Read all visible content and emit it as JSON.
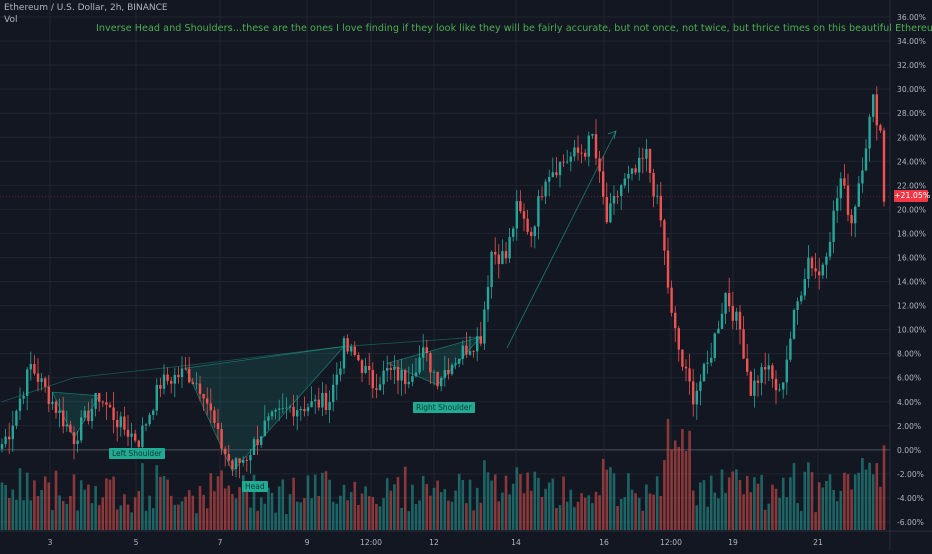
{
  "header": {
    "symbol": "Ethereum / U.S. Dollar, 2h, BINANCE",
    "indicator": "Vol"
  },
  "annotation": "Inverse Head and Shoulders…these are the ones I love finding if they look like they will be fairly accurate, but not once, not twice, but thrice times on this beautiful Ethereum chart.",
  "pattern_labels": {
    "left_shoulder": "Left Shoulder",
    "head": "Head",
    "right_shoulder": "Right Shoulder"
  },
  "colors": {
    "background": "#131722",
    "up": "#26a69a",
    "down": "#ef5350",
    "annotation_text": "#4caf50",
    "pattern_fill": "#22ab94",
    "current_price_badge": "#f23645"
  },
  "chart_data": {
    "type": "candlestick",
    "y_unit": "percent",
    "yticks": [
      "36.00%",
      "34.00%",
      "32.00%",
      "30.00%",
      "28.00%",
      "26.00%",
      "24.00%",
      "22.00%",
      "20.00%",
      "18.00%",
      "16.00%",
      "14.00%",
      "12.00%",
      "10.00%",
      "8.00%",
      "6.00%",
      "4.00%",
      "2.00%",
      "0.00%",
      "-2.00%",
      "-4.00%",
      "-6.00%"
    ],
    "ylim": [
      -6.5,
      37
    ],
    "xticks": [
      "3",
      "5",
      "7",
      "9",
      "12:00",
      "12",
      "14",
      "16",
      "12:00",
      "19",
      "21"
    ],
    "current_value": "+21.05%",
    "keypoints": [
      {
        "t": 0,
        "v": 0.5
      },
      {
        "t": 2,
        "v": 1.5
      },
      {
        "t": 8,
        "v": 7.0
      },
      {
        "t": 14,
        "v": 4.0
      },
      {
        "t": 20,
        "v": 1.0
      },
      {
        "t": 27,
        "v": 4.5
      },
      {
        "t": 33,
        "v": 2.0
      },
      {
        "t": 38,
        "v": 0.8
      },
      {
        "t": 44,
        "v": 5.5
      },
      {
        "t": 51,
        "v": 6.5
      },
      {
        "t": 56,
        "v": 5.0
      },
      {
        "t": 60,
        "v": 1.0
      },
      {
        "t": 64,
        "v": -1.5
      },
      {
        "t": 68,
        "v": -0.5
      },
      {
        "t": 73,
        "v": 2.0
      },
      {
        "t": 80,
        "v": 3.5
      },
      {
        "t": 87,
        "v": 3.8
      },
      {
        "t": 91,
        "v": 4.2
      },
      {
        "t": 95,
        "v": 8.5
      },
      {
        "t": 99,
        "v": 7.5
      },
      {
        "t": 103,
        "v": 5.5
      },
      {
        "t": 107,
        "v": 6.5
      },
      {
        "t": 112,
        "v": 6.0
      },
      {
        "t": 117,
        "v": 8.0
      },
      {
        "t": 121,
        "v": 6.0
      },
      {
        "t": 124,
        "v": 7.0
      },
      {
        "t": 129,
        "v": 8.5
      },
      {
        "t": 133,
        "v": 9.5
      },
      {
        "t": 136,
        "v": 16.5
      },
      {
        "t": 140,
        "v": 16.0
      },
      {
        "t": 143,
        "v": 20.0
      },
      {
        "t": 147,
        "v": 18.0
      },
      {
        "t": 151,
        "v": 23.0
      },
      {
        "t": 156,
        "v": 24.0
      },
      {
        "t": 162,
        "v": 25.0
      },
      {
        "t": 164,
        "v": 26.0
      },
      {
        "t": 168,
        "v": 19.0
      },
      {
        "t": 172,
        "v": 22.0
      },
      {
        "t": 176,
        "v": 23.0
      },
      {
        "t": 179,
        "v": 24.5
      },
      {
        "t": 183,
        "v": 19.0
      },
      {
        "t": 186,
        "v": 11.0
      },
      {
        "t": 189,
        "v": 7.0
      },
      {
        "t": 192,
        "v": 4.5
      },
      {
        "t": 196,
        "v": 7.0
      },
      {
        "t": 201,
        "v": 13.0
      },
      {
        "t": 205,
        "v": 10.0
      },
      {
        "t": 208,
        "v": 5.0
      },
      {
        "t": 212,
        "v": 7.0
      },
      {
        "t": 216,
        "v": 4.5
      },
      {
        "t": 220,
        "v": 11.0
      },
      {
        "t": 224,
        "v": 16.0
      },
      {
        "t": 227,
        "v": 14.5
      },
      {
        "t": 230,
        "v": 18.0
      },
      {
        "t": 233,
        "v": 22.5
      },
      {
        "t": 236,
        "v": 19.0
      },
      {
        "t": 239,
        "v": 24.0
      },
      {
        "t": 242,
        "v": 29.0
      },
      {
        "t": 244,
        "v": 26.5
      },
      {
        "t": 245,
        "v": 21.0
      }
    ]
  }
}
